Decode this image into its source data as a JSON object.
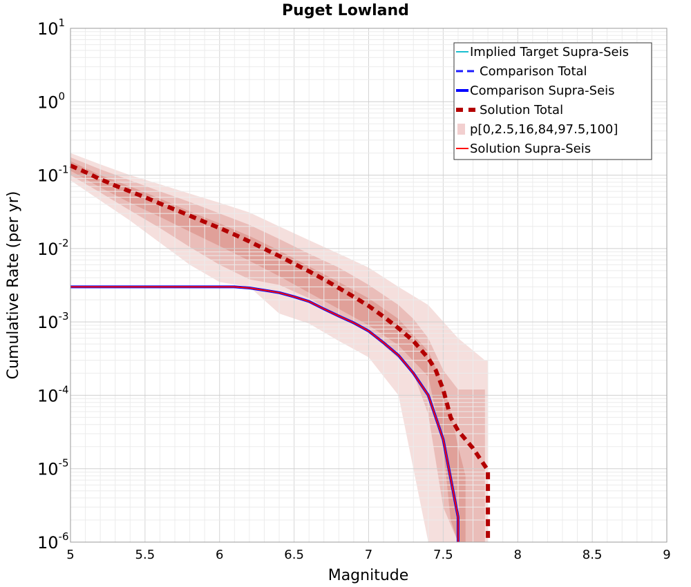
{
  "chart_data": {
    "type": "line",
    "title": "Puget Lowland",
    "xlabel": "Magnitude",
    "ylabel": "Cumulative Rate (per yr)",
    "xlim": [
      5,
      9
    ],
    "ylim": [
      1e-06,
      10
    ],
    "yscale": "log",
    "grid": true,
    "legend_position": "top-right",
    "xticks": [
      "5",
      "5.5",
      "6",
      "6.5",
      "7",
      "7.5",
      "8",
      "8.5",
      "9"
    ],
    "yticks": [
      {
        "base": "10",
        "exp": "1",
        "value": 10
      },
      {
        "base": "10",
        "exp": "0",
        "value": 1
      },
      {
        "base": "10",
        "exp": "-1",
        "value": 0.1
      },
      {
        "base": "10",
        "exp": "-2",
        "value": 0.01
      },
      {
        "base": "10",
        "exp": "-3",
        "value": 0.001
      },
      {
        "base": "10",
        "exp": "-4",
        "value": 0.0001
      },
      {
        "base": "10",
        "exp": "-5",
        "value": 1e-05
      },
      {
        "base": "10",
        "exp": "-6",
        "value": 1e-06
      }
    ],
    "bands": {
      "name": "p[0,2.5,16,84,97.5,100]",
      "color": "#c0392b",
      "outer": {
        "x": [
          5.0,
          5.2,
          5.4,
          5.6,
          5.8,
          6.0,
          6.2,
          6.4,
          6.6,
          6.8,
          7.0,
          7.2,
          7.4,
          7.6,
          7.78,
          7.8
        ],
        "lower": [
          0.085,
          0.045,
          0.024,
          0.012,
          0.006,
          0.0035,
          0.003,
          0.0013,
          0.00095,
          0.00055,
          0.00033,
          0.0001,
          1e-06,
          1e-06,
          1e-06,
          1e-06
        ],
        "upper": [
          0.2,
          0.14,
          0.1,
          0.075,
          0.056,
          0.042,
          0.031,
          0.02,
          0.013,
          0.0085,
          0.0055,
          0.003,
          0.0017,
          0.0006,
          0.0003,
          0.0003
        ]
      },
      "middle": {
        "x": [
          5.0,
          5.2,
          5.4,
          5.6,
          5.8,
          6.0,
          6.2,
          6.4,
          6.6,
          6.8,
          7.0,
          7.2,
          7.3,
          7.4,
          7.5,
          7.6,
          7.7,
          7.78
        ],
        "lower": [
          0.1,
          0.058,
          0.033,
          0.019,
          0.0105,
          0.006,
          0.0038,
          0.0032,
          0.0021,
          0.0012,
          0.00072,
          0.00032,
          0.0002,
          5.5e-05,
          3e-06,
          1e-06,
          1e-06,
          1e-06
        ],
        "upper": [
          0.175,
          0.12,
          0.085,
          0.06,
          0.043,
          0.03,
          0.021,
          0.0135,
          0.0085,
          0.0055,
          0.0032,
          0.0017,
          0.0011,
          0.0006,
          0.00022,
          0.00012,
          0.00012,
          0.00012
        ]
      },
      "inner": {
        "x": [
          5.0,
          5.2,
          5.4,
          5.6,
          5.8,
          6.0,
          6.2,
          6.4,
          6.6,
          6.8,
          7.0,
          7.2,
          7.4,
          7.5,
          7.55,
          7.6,
          7.65
        ],
        "lower": [
          0.115,
          0.068,
          0.042,
          0.027,
          0.017,
          0.0108,
          0.0068,
          0.0042,
          0.0025,
          0.0015,
          0.0009,
          0.00048,
          0.00018,
          2e-05,
          2e-06,
          1e-06,
          1e-06
        ],
        "upper": [
          0.155,
          0.1,
          0.07,
          0.048,
          0.032,
          0.022,
          0.0148,
          0.0094,
          0.0057,
          0.0035,
          0.0021,
          0.0011,
          0.0004,
          0.00014,
          6e-05,
          2e-05,
          8e-06
        ]
      }
    },
    "series": [
      {
        "name": "Implied Target Supra-Seis",
        "color": "#17becf",
        "style": "solid",
        "x": [
          5.0,
          5.5,
          6.0,
          6.1,
          6.2,
          6.3,
          6.4,
          6.5,
          6.6,
          6.7,
          6.8,
          6.9,
          7.0,
          7.1,
          7.2,
          7.3,
          7.4,
          7.5,
          7.6,
          7.6
        ],
        "y": [
          0.003,
          0.003,
          0.003,
          0.003,
          0.0029,
          0.0027,
          0.0025,
          0.0022,
          0.0019,
          0.0015,
          0.0012,
          0.00097,
          0.00075,
          0.00052,
          0.00035,
          0.0002,
          0.0001,
          2.5e-05,
          2.2e-06,
          1e-06
        ]
      },
      {
        "name": "Comparison Total",
        "color": "#1a1aff",
        "style": "dashed",
        "x": [],
        "y": []
      },
      {
        "name": "Comparison Supra-Seis",
        "color": "#0000ff",
        "style": "solid-thick",
        "x": [
          5.0,
          5.5,
          6.0,
          6.1,
          6.2,
          6.3,
          6.4,
          6.5,
          6.6,
          6.7,
          6.8,
          6.9,
          7.0,
          7.1,
          7.2,
          7.3,
          7.4,
          7.5,
          7.6,
          7.6
        ],
        "y": [
          0.003,
          0.003,
          0.003,
          0.003,
          0.0029,
          0.0027,
          0.0025,
          0.0022,
          0.0019,
          0.0015,
          0.0012,
          0.00097,
          0.00075,
          0.00052,
          0.00035,
          0.0002,
          0.0001,
          2.5e-05,
          2.2e-06,
          1e-06
        ]
      },
      {
        "name": "Solution Total",
        "color": "#b30000",
        "style": "dashed-thick",
        "x": [
          5.0,
          5.1,
          5.2,
          5.3,
          5.4,
          5.5,
          5.6,
          5.7,
          5.8,
          5.9,
          6.0,
          6.1,
          6.2,
          6.3,
          6.4,
          6.5,
          6.6,
          6.7,
          6.8,
          6.9,
          7.0,
          7.1,
          7.2,
          7.3,
          7.4,
          7.45,
          7.5,
          7.55,
          7.6,
          7.7,
          7.8,
          7.8
        ],
        "y": [
          0.135,
          0.11,
          0.088,
          0.072,
          0.06,
          0.05,
          0.041,
          0.034,
          0.028,
          0.023,
          0.019,
          0.0155,
          0.0125,
          0.0099,
          0.0079,
          0.0062,
          0.0049,
          0.0038,
          0.0029,
          0.0022,
          0.00165,
          0.00118,
          0.00082,
          0.00055,
          0.00032,
          0.00022,
          0.00012,
          5e-05,
          3.3e-05,
          1.9e-05,
          9.5e-06,
          1e-06
        ]
      },
      {
        "name": "Solution Supra-Seis",
        "color": "#ff0000",
        "style": "solid",
        "x": [
          5.0,
          5.5,
          6.0,
          6.1,
          6.2,
          6.3,
          6.4,
          6.5,
          6.6,
          6.7,
          6.8,
          6.9,
          7.0,
          7.1,
          7.2,
          7.3,
          7.4,
          7.5,
          7.6,
          7.6
        ],
        "y": [
          0.003,
          0.003,
          0.003,
          0.003,
          0.0029,
          0.0027,
          0.0025,
          0.0022,
          0.0019,
          0.0015,
          0.0012,
          0.00097,
          0.00075,
          0.00052,
          0.00035,
          0.0002,
          0.0001,
          2.5e-05,
          2.2e-06,
          1e-06
        ]
      }
    ],
    "legend": [
      {
        "label": "Implied Target Supra-Seis",
        "color": "#17becf",
        "style": "solid"
      },
      {
        "label": "Comparison Total",
        "color": "#1a1aff",
        "style": "dashed"
      },
      {
        "label": "Comparison Supra-Seis",
        "color": "#0000ff",
        "style": "solid-thick"
      },
      {
        "label": "Solution Total",
        "color": "#b30000",
        "style": "dashed-thick"
      },
      {
        "label": "p[0,2.5,16,84,97.5,100]",
        "color": "#f2cfcf",
        "style": "box"
      },
      {
        "label": "Solution Supra-Seis",
        "color": "#ff0000",
        "style": "solid"
      }
    ]
  }
}
